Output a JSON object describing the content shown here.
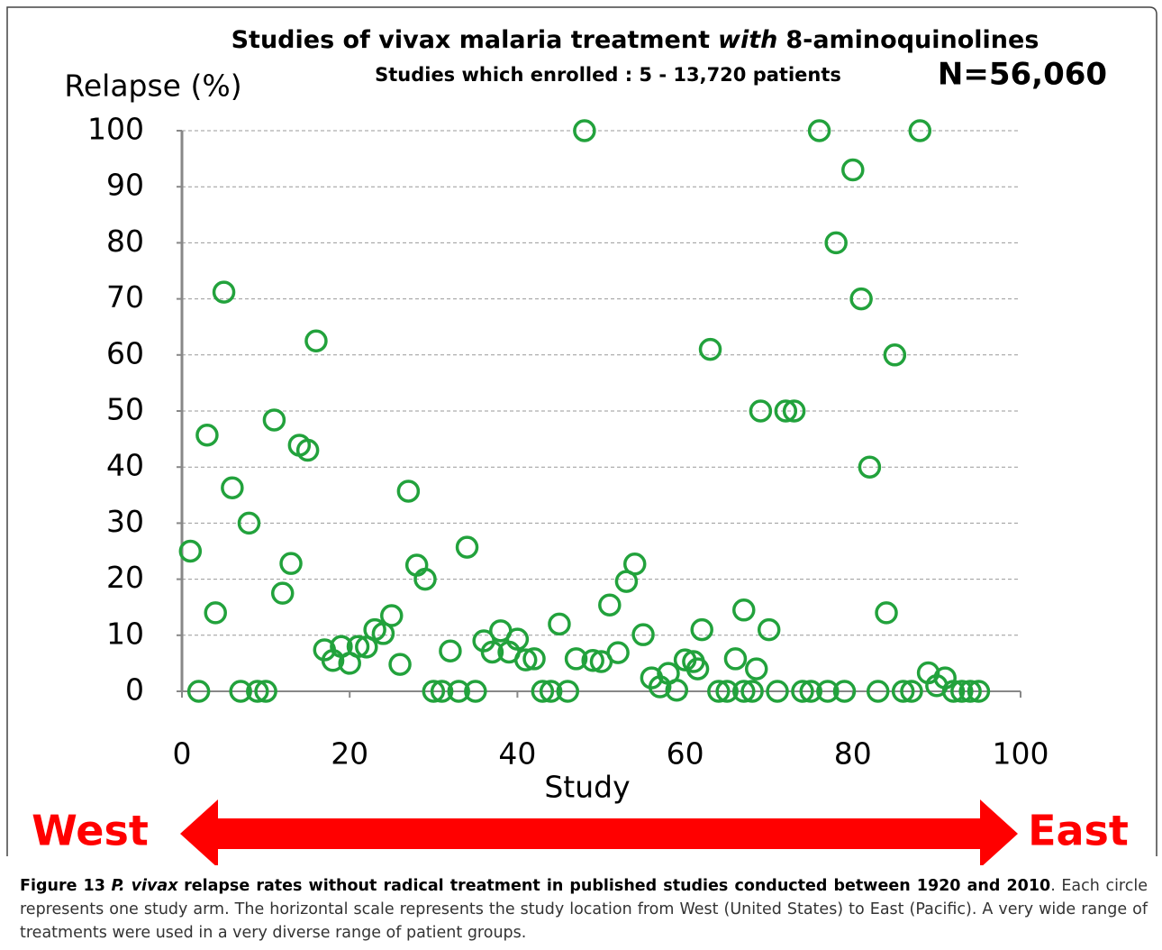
{
  "chart_data": {
    "type": "scatter",
    "title_parts": {
      "before": "Studies of vivax malaria treatment",
      "emphasis": "with",
      "after": "8-aminoquinolines"
    },
    "subtitle": "Studies which enrolled : 5 - 13,720 patients",
    "annotation": "N=56,060",
    "y_label": "Relapse (%)",
    "x_label": "Study",
    "direction_labels": {
      "left": "West",
      "right": "East"
    },
    "arrow_color": "#ff0000",
    "xlim": [
      0,
      100
    ],
    "xticks": [
      0,
      20,
      40,
      60,
      80,
      100
    ],
    "ylim": [
      0,
      100
    ],
    "yticks": [
      0,
      10,
      20,
      30,
      40,
      50,
      60,
      70,
      80,
      90,
      100
    ],
    "grid": true,
    "series": [
      {
        "color": "#22a23c",
        "x": [
          1,
          2,
          3,
          4,
          5,
          6,
          7,
          8,
          9,
          10,
          11,
          12,
          13,
          14,
          15,
          16,
          17,
          18,
          19,
          20,
          21,
          22,
          23,
          24,
          25,
          26,
          27,
          28,
          29,
          30,
          31,
          32,
          33,
          34,
          35,
          36,
          37,
          38,
          39,
          40,
          41,
          42,
          43,
          44,
          45,
          46,
          47,
          48,
          49,
          50,
          51,
          52,
          53,
          54,
          55,
          56,
          57,
          58,
          59,
          60,
          61,
          61.5,
          62,
          63,
          64,
          65,
          66,
          67,
          67,
          68,
          68.5,
          69,
          70,
          71,
          72,
          73,
          74,
          75,
          76,
          77,
          78,
          79,
          80,
          81,
          82,
          83,
          84,
          85,
          86,
          87,
          88,
          89,
          90,
          91,
          92,
          93,
          94,
          95
        ],
        "values": [
          25,
          0,
          45.7,
          14,
          71.2,
          36.3,
          0,
          30,
          0,
          0,
          48.4,
          17.5,
          22.8,
          43.9,
          43,
          62.5,
          7.4,
          5.5,
          8,
          5,
          8,
          7.9,
          11,
          10.3,
          13.5,
          4.8,
          35.7,
          22.5,
          20,
          0,
          0,
          7.2,
          0,
          25.7,
          0,
          9,
          7,
          10.8,
          7,
          9.3,
          5.6,
          5.8,
          0,
          0,
          12,
          0,
          5.8,
          100,
          5.5,
          5.3,
          15.4,
          6.9,
          19.6,
          22.7,
          10.1,
          2.4,
          0.8,
          3.2,
          0.2,
          5.6,
          5.3,
          4,
          11,
          61,
          0,
          0,
          5.8,
          0,
          14.5,
          0,
          4,
          50,
          11,
          0,
          50,
          50,
          0,
          0,
          100,
          0,
          80,
          0,
          93,
          70,
          40,
          0,
          14,
          60,
          0,
          0,
          100,
          3.3,
          1,
          2.4,
          0,
          0,
          0,
          0
        ]
      }
    ]
  },
  "caption": {
    "label": "Figure 13",
    "species": "P. vivax",
    "title": "relapse rates without radical treatment in published studies conducted between 1920 and 2010",
    "text": ". Each circle represents one study arm. The horizontal scale represents the study location from West (United States) to East (Pacific). A very wide range of treatments were used in a very diverse range of patient groups."
  }
}
